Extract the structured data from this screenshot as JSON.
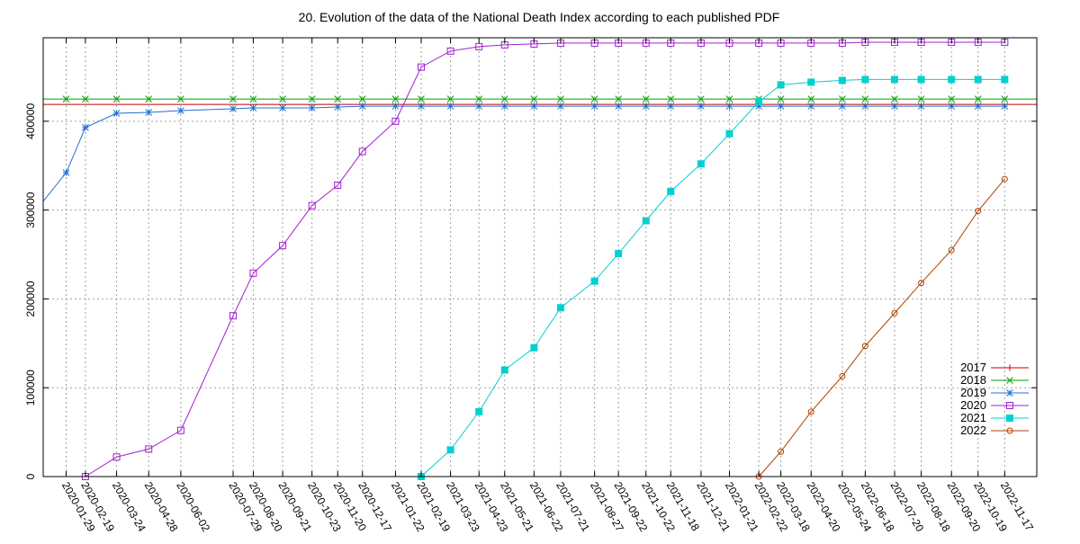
{
  "chart_data": {
    "type": "line",
    "title": "20. Evolution of the data of the National Death Index according to each published PDF",
    "xlabel": "",
    "ylabel": "",
    "ylim": [
      0,
      494000
    ],
    "yticks": [
      0,
      100000,
      200000,
      300000,
      400000
    ],
    "ytick_labels": [
      "0",
      "100000",
      "200000",
      "300000",
      "400000"
    ],
    "xticks": [
      "2020-01-29",
      "2020-02-19",
      "2020-03-24",
      "2020-04-28",
      "2020-06-02",
      "2020-07-29",
      "2020-08-20",
      "2020-09-21",
      "2020-10-23",
      "2020-11-20",
      "2020-12-17",
      "2021-01-22",
      "2021-02-19",
      "2021-03-23",
      "2021-04-23",
      "2021-05-21",
      "2021-06-22",
      "2021-07-21",
      "2021-08-27",
      "2021-09-22",
      "2021-10-22",
      "2021-11-18",
      "2021-12-21",
      "2022-01-21",
      "2022-02-22",
      "2022-03-18",
      "2022-04-20",
      "2022-05-24",
      "2022-06-18",
      "2022-07-20",
      "2022-08-18",
      "2022-09-20",
      "2022-10-19",
      "2022-11-17"
    ],
    "xrange": [
      "2020-01-04",
      "2022-12-22"
    ],
    "grid": true,
    "legend_position": "bottom-right",
    "series": [
      {
        "name": "2017",
        "color": "#c00000",
        "marker": "plus",
        "x": [
          "2020-01-04",
          "2022-12-22"
        ],
        "values": [
          419000,
          419000
        ]
      },
      {
        "name": "2018",
        "color": "#00a000",
        "marker": "cross",
        "x": [
          "2020-01-04",
          "2020-01-29",
          "2020-02-19",
          "2020-03-24",
          "2020-04-28",
          "2020-06-02",
          "2020-07-29",
          "2020-08-20",
          "2020-09-21",
          "2020-10-23",
          "2020-11-20",
          "2020-12-17",
          "2021-01-22",
          "2021-02-19",
          "2021-03-23",
          "2021-04-23",
          "2021-05-21",
          "2021-06-22",
          "2021-07-21",
          "2021-08-27",
          "2021-09-22",
          "2021-10-22",
          "2021-11-18",
          "2021-12-21",
          "2022-01-21",
          "2022-02-22",
          "2022-03-18",
          "2022-04-20",
          "2022-05-24",
          "2022-06-18",
          "2022-07-20",
          "2022-08-18",
          "2022-09-20",
          "2022-10-19",
          "2022-11-17",
          "2022-12-22"
        ],
        "values": [
          425000,
          425000,
          425000,
          425000,
          425000,
          425000,
          425000,
          425000,
          425000,
          425000,
          425000,
          425000,
          425000,
          425000,
          425000,
          425000,
          425000,
          425000,
          425000,
          425000,
          425000,
          425000,
          425000,
          425000,
          425000,
          425000,
          425000,
          425000,
          425000,
          425000,
          425000,
          425000,
          425000,
          425000,
          425000,
          425000
        ]
      },
      {
        "name": "2019",
        "color": "#2070d0",
        "marker": "star",
        "x": [
          "2020-01-04",
          "2020-01-29",
          "2020-02-19",
          "2020-03-24",
          "2020-04-28",
          "2020-06-02",
          "2020-07-29",
          "2020-08-20",
          "2020-09-21",
          "2020-10-23",
          "2020-11-20",
          "2020-12-17",
          "2021-01-22",
          "2021-02-19",
          "2021-03-23",
          "2021-04-23",
          "2021-05-21",
          "2021-06-22",
          "2021-07-21",
          "2021-08-27",
          "2021-09-22",
          "2021-10-22",
          "2021-11-18",
          "2021-12-21",
          "2022-01-21",
          "2022-02-22",
          "2022-03-18",
          "2022-04-20",
          "2022-05-24",
          "2022-06-18",
          "2022-07-20",
          "2022-08-18",
          "2022-09-20",
          "2022-10-19",
          "2022-11-17"
        ],
        "values": [
          310000,
          342000,
          393000,
          409000,
          410000,
          412000,
          414000,
          415000,
          415000,
          415000,
          416000,
          417000,
          417000,
          417000,
          417000,
          417000,
          417000,
          417000,
          417000,
          417000,
          417000,
          417000,
          417000,
          417000,
          417000,
          417000,
          417000,
          417000,
          417000,
          417000,
          417000,
          417000,
          417000,
          417000,
          417000
        ]
      },
      {
        "name": "2020",
        "color": "#a020d0",
        "marker": "square",
        "x": [
          "2020-02-19",
          "2020-03-24",
          "2020-04-28",
          "2020-06-02",
          "2020-07-29",
          "2020-08-20",
          "2020-09-21",
          "2020-10-23",
          "2020-11-20",
          "2020-12-17",
          "2021-01-22",
          "2021-02-19",
          "2021-03-23",
          "2021-04-23",
          "2021-05-21",
          "2021-06-22",
          "2021-07-21",
          "2021-08-27",
          "2021-09-22",
          "2021-10-22",
          "2021-11-18",
          "2021-12-21",
          "2022-01-21",
          "2022-02-22",
          "2022-03-18",
          "2022-04-20",
          "2022-05-24",
          "2022-06-18",
          "2022-07-20",
          "2022-08-18",
          "2022-09-20",
          "2022-10-19",
          "2022-11-17"
        ],
        "values": [
          0,
          22000,
          31000,
          52000,
          181000,
          229000,
          260000,
          305000,
          328000,
          366000,
          400000,
          461000,
          479000,
          484000,
          486000,
          487000,
          488000,
          488000,
          488000,
          488000,
          488000,
          488000,
          488000,
          488000,
          488000,
          488000,
          488000,
          489000,
          489000,
          489000,
          489000,
          489000,
          489000
        ]
      },
      {
        "name": "2021",
        "color": "#00d0d0",
        "marker": "filled-square",
        "x": [
          "2021-02-19",
          "2021-03-23",
          "2021-04-23",
          "2021-05-21",
          "2021-06-22",
          "2021-07-21",
          "2021-08-27",
          "2021-09-22",
          "2021-10-22",
          "2021-11-18",
          "2021-12-21",
          "2022-01-21",
          "2022-02-22",
          "2022-03-18",
          "2022-04-20",
          "2022-05-24",
          "2022-06-18",
          "2022-07-20",
          "2022-08-18",
          "2022-09-20",
          "2022-10-19",
          "2022-11-17"
        ],
        "values": [
          0,
          30000,
          73000,
          120000,
          145000,
          190000,
          220000,
          251000,
          288000,
          321000,
          352000,
          386000,
          422000,
          441000,
          444000,
          446000,
          447000,
          447000,
          447000,
          447000,
          447000,
          447000
        ]
      },
      {
        "name": "2022",
        "color": "#b04000",
        "marker": "circle",
        "x": [
          "2022-02-22",
          "2022-03-18",
          "2022-04-20",
          "2022-05-24",
          "2022-06-18",
          "2022-07-20",
          "2022-08-18",
          "2022-09-20",
          "2022-10-19",
          "2022-11-17"
        ],
        "values": [
          0,
          28000,
          73000,
          113000,
          147000,
          184000,
          218000,
          255000,
          299000,
          335000
        ]
      }
    ]
  }
}
